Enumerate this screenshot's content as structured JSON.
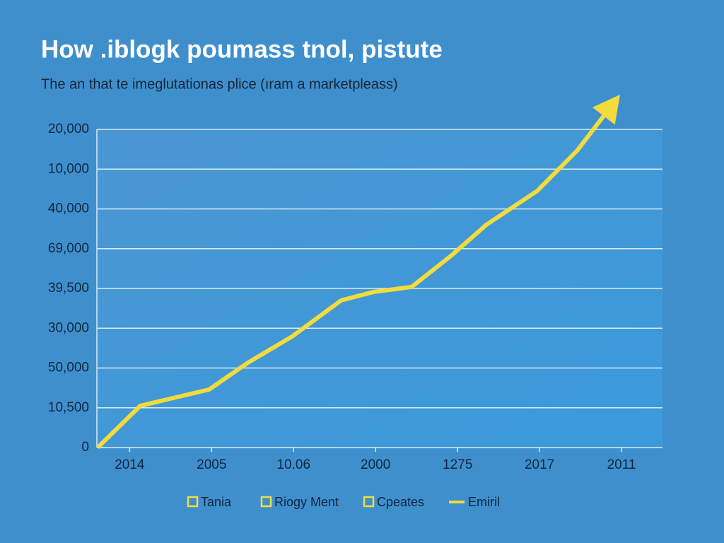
{
  "chart_data": {
    "type": "line",
    "title": "How .iblogk poumass tnol, pistute",
    "subtitle": "The an that te imeglutationas plice (ıram a marketpleass)",
    "x": [
      -0.39,
      0.13,
      0.97,
      1.44,
      1.98,
      2.58,
      2.97,
      3.44,
      3.92,
      4.35,
      4.97,
      5.46,
      5.94
    ],
    "series": [
      {
        "name": "Emiril",
        "color": "#f2dc3c",
        "values": [
          0,
          1.05,
          1.46,
          2.13,
          2.79,
          3.7,
          3.91,
          4.04,
          4.82,
          5.6,
          6.45,
          7.47,
          8.76
        ]
      }
    ],
    "xlim": [
      -0.4,
      6.5
    ],
    "xticks": [
      {
        "value": 0,
        "label": "2014"
      },
      {
        "value": 1,
        "label": "2005"
      },
      {
        "value": 2,
        "label": "10.06"
      },
      {
        "value": 3,
        "label": "2000"
      },
      {
        "value": 4,
        "label": "1275"
      },
      {
        "value": 5,
        "label": "2017"
      },
      {
        "value": 6,
        "label": "2011"
      }
    ],
    "ylim": [
      0,
      8
    ],
    "yticks": [
      0,
      {
        "value": 1,
        "label": "10,500"
      },
      {
        "value": 2,
        "label": "50,000"
      },
      {
        "value": 3,
        "label": "30,000"
      },
      {
        "value": 4,
        "label": "39,500"
      },
      {
        "value": 5,
        "label": "69,000"
      },
      {
        "value": 6,
        "label": "40,000"
      },
      {
        "value": 7,
        "label": "10,000"
      },
      {
        "value": 8,
        "label": "20,000"
      }
    ],
    "grid": true,
    "arrow_end": true,
    "legend": [
      {
        "label": "Tania",
        "marker": "square"
      },
      {
        "label": "Riogy Ment",
        "marker": "square"
      },
      {
        "label": "Cpeates",
        "marker": "square"
      },
      {
        "label": "Emiril",
        "marker": "line"
      }
    ]
  }
}
